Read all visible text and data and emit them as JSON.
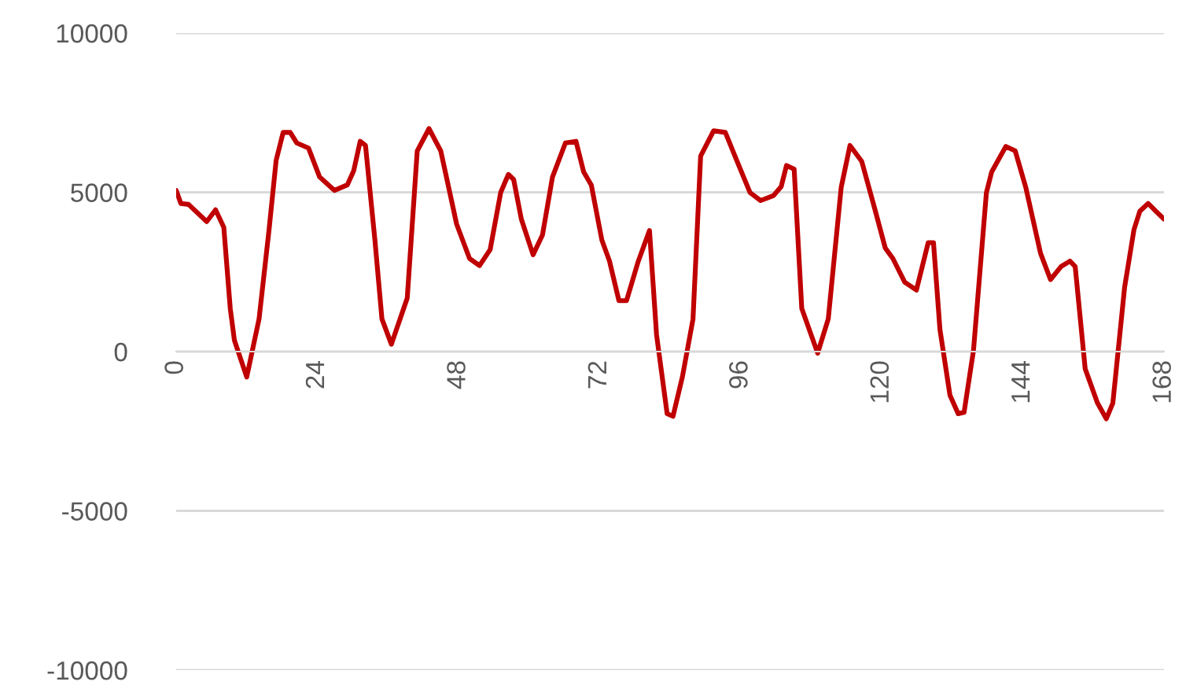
{
  "chart_data": {
    "type": "line",
    "x": [
      0,
      0.8,
      2.1,
      5.2,
      6.7,
      8.1,
      9.2,
      9.9,
      12,
      14.1,
      15.8,
      17,
      18.2,
      19.4,
      20.5,
      22.5,
      24.4,
      26.9,
      29.1,
      30.2,
      31.3,
      32.2,
      33.8,
      35,
      36.6,
      39.3,
      41,
      43,
      45,
      47.7,
      49.9,
      51.6,
      53.4,
      55.2,
      56.5,
      57.4,
      58.7,
      60.7,
      62.3,
      64,
      66.2,
      68,
      69.3,
      70.6,
      72.4,
      73.7,
      75.3,
      76.6,
      78.6,
      80.5,
      81.7,
      83.5,
      84.5,
      86.1,
      87.9,
      89.2,
      91.4,
      93.4,
      95.4,
      97.6,
      99.4,
      101.6,
      102.9,
      103.8,
      105.1,
      106.4,
      109.1,
      110.9,
      113.1,
      114.6,
      116.6,
      118.8,
      120.6,
      121.9,
      123.9,
      125.9,
      127.9,
      128.8,
      129.9,
      131.6,
      133,
      134,
      135.6,
      137.8,
      138.7,
      141.1,
      142.7,
      144.5,
      147,
      148.7,
      150.5,
      152,
      152.9,
      154.6,
      156.7,
      158.2,
      159.3,
      161.3,
      162.9,
      163.9,
      165.3,
      166.6,
      168
    ],
    "series": [
      {
        "color": "#c00000",
        "values": [
          5060,
          4650,
          4620,
          4080,
          4450,
          3900,
          1350,
          360,
          -800,
          1030,
          3830,
          6000,
          6880,
          6880,
          6550,
          6390,
          5480,
          5060,
          5230,
          5680,
          6600,
          6470,
          3500,
          1020,
          230,
          1680,
          6300,
          7000,
          6300,
          4000,
          2920,
          2700,
          3200,
          5000,
          5560,
          5400,
          4160,
          3040,
          3660,
          5480,
          6550,
          6600,
          5640,
          5230,
          3500,
          2840,
          1600,
          1600,
          2840,
          3800,
          530,
          -1950,
          -2030,
          -790,
          1020,
          6140,
          6930,
          6880,
          5970,
          4990,
          4740,
          4900,
          5180,
          5840,
          5730,
          1350,
          -50,
          1020,
          5150,
          6470,
          5970,
          4490,
          3250,
          2920,
          2180,
          1930,
          3420,
          3420,
          690,
          -1370,
          -1950,
          -1910,
          30,
          4990,
          5640,
          6440,
          6300,
          5150,
          3090,
          2260,
          2670,
          2840,
          2670,
          -540,
          -1620,
          -2110,
          -1620,
          2010,
          3830,
          4410,
          4650,
          4410,
          4160
        ]
      }
    ],
    "xlim": [
      0,
      168
    ],
    "xticks": [
      0,
      24,
      48,
      72,
      96,
      120,
      144,
      168
    ],
    "ylim": [
      -10000,
      10000
    ],
    "yticks": [
      -10000,
      -5000,
      0,
      5000,
      10000
    ],
    "grid": "y",
    "marker": "none",
    "line_style": "solid"
  }
}
